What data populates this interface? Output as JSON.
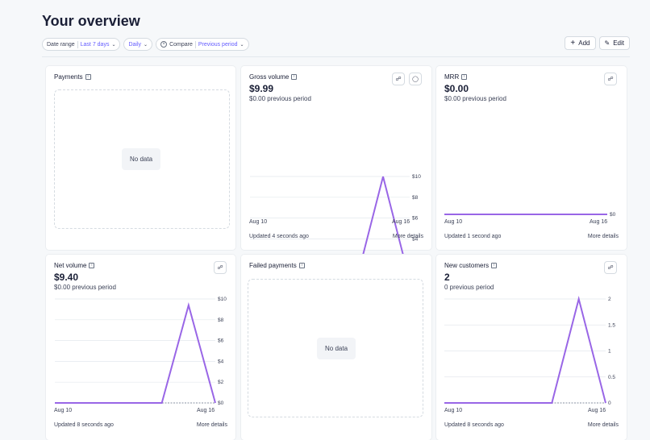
{
  "page": {
    "title": "Your overview"
  },
  "toolbar": {
    "date_range_label": "Date range",
    "date_range_value": "Last 7 days",
    "interval_value": "Daily",
    "compare_label": "Compare",
    "compare_value": "Previous period",
    "add_label": "Add",
    "edit_label": "Edit"
  },
  "cards": {
    "payments": {
      "title": "Payments",
      "no_data": "No data"
    },
    "gross_volume": {
      "title": "Gross volume",
      "value": "$9.99",
      "previous": "$0.00 previous period",
      "x_start": "Aug 10",
      "x_end": "Aug 16",
      "updated": "Updated 4 seconds ago",
      "more": "More details"
    },
    "mrr": {
      "title": "MRR",
      "value": "$0.00",
      "previous": "$0.00 previous period",
      "x_start": "Aug 10",
      "x_end": "Aug 16",
      "updated": "Updated 1 second ago",
      "more": "More details"
    },
    "net_volume": {
      "title": "Net volume",
      "value": "$9.40",
      "previous": "$0.00 previous period",
      "x_start": "Aug 10",
      "x_end": "Aug 16",
      "updated": "Updated 8 seconds ago",
      "more": "More details"
    },
    "failed_payments": {
      "title": "Failed payments",
      "no_data": "No data"
    },
    "new_customers": {
      "title": "New customers",
      "value": "2",
      "previous": "0 previous period",
      "x_start": "Aug 10",
      "x_end": "Aug 16",
      "updated": "Updated 8 seconds ago",
      "more": "More details"
    }
  },
  "colors": {
    "accent": "#635bff",
    "line": "#9966e6",
    "compare_line": "#8792a2"
  },
  "chart_data": [
    {
      "type": "line",
      "id": "gross_volume",
      "x": [
        "Aug 10",
        "Aug 11",
        "Aug 12",
        "Aug 13",
        "Aug 14",
        "Aug 15",
        "Aug 16"
      ],
      "series": [
        {
          "values": [
            0,
            0,
            0,
            0,
            0,
            9.99,
            0
          ]
        }
      ],
      "compare": [
        0,
        0,
        0,
        0,
        0,
        0,
        0
      ],
      "yticks": [
        "$0",
        "$2",
        "$4",
        "$6",
        "$8",
        "$10"
      ],
      "ylim": [
        0,
        10
      ]
    },
    {
      "type": "line",
      "id": "mrr",
      "x": [
        "Aug 10",
        "Aug 11",
        "Aug 12",
        "Aug 13",
        "Aug 14",
        "Aug 15",
        "Aug 16"
      ],
      "series": [
        {
          "values": [
            0,
            0,
            0,
            0,
            0,
            0,
            0
          ]
        }
      ],
      "yticks": [
        "$0"
      ],
      "ylim": [
        0,
        1
      ]
    },
    {
      "type": "line",
      "id": "net_volume",
      "x": [
        "Aug 10",
        "Aug 11",
        "Aug 12",
        "Aug 13",
        "Aug 14",
        "Aug 15",
        "Aug 16"
      ],
      "series": [
        {
          "values": [
            0,
            0,
            0,
            0,
            0,
            9.4,
            0
          ]
        }
      ],
      "compare": [
        0,
        0,
        0,
        0,
        0,
        0,
        0
      ],
      "yticks": [
        "$0",
        "$2",
        "$4",
        "$6",
        "$8",
        "$10"
      ],
      "ylim": [
        0,
        10
      ]
    },
    {
      "type": "line",
      "id": "new_customers",
      "x": [
        "Aug 10",
        "Aug 11",
        "Aug 12",
        "Aug 13",
        "Aug 14",
        "Aug 15",
        "Aug 16"
      ],
      "series": [
        {
          "values": [
            0,
            0,
            0,
            0,
            0,
            2,
            0
          ]
        }
      ],
      "compare": [
        0,
        0,
        0,
        0,
        0,
        0,
        0
      ],
      "yticks": [
        "0",
        "0.5",
        "1",
        "1.5",
        "2"
      ],
      "ylim": [
        0,
        2
      ]
    }
  ]
}
